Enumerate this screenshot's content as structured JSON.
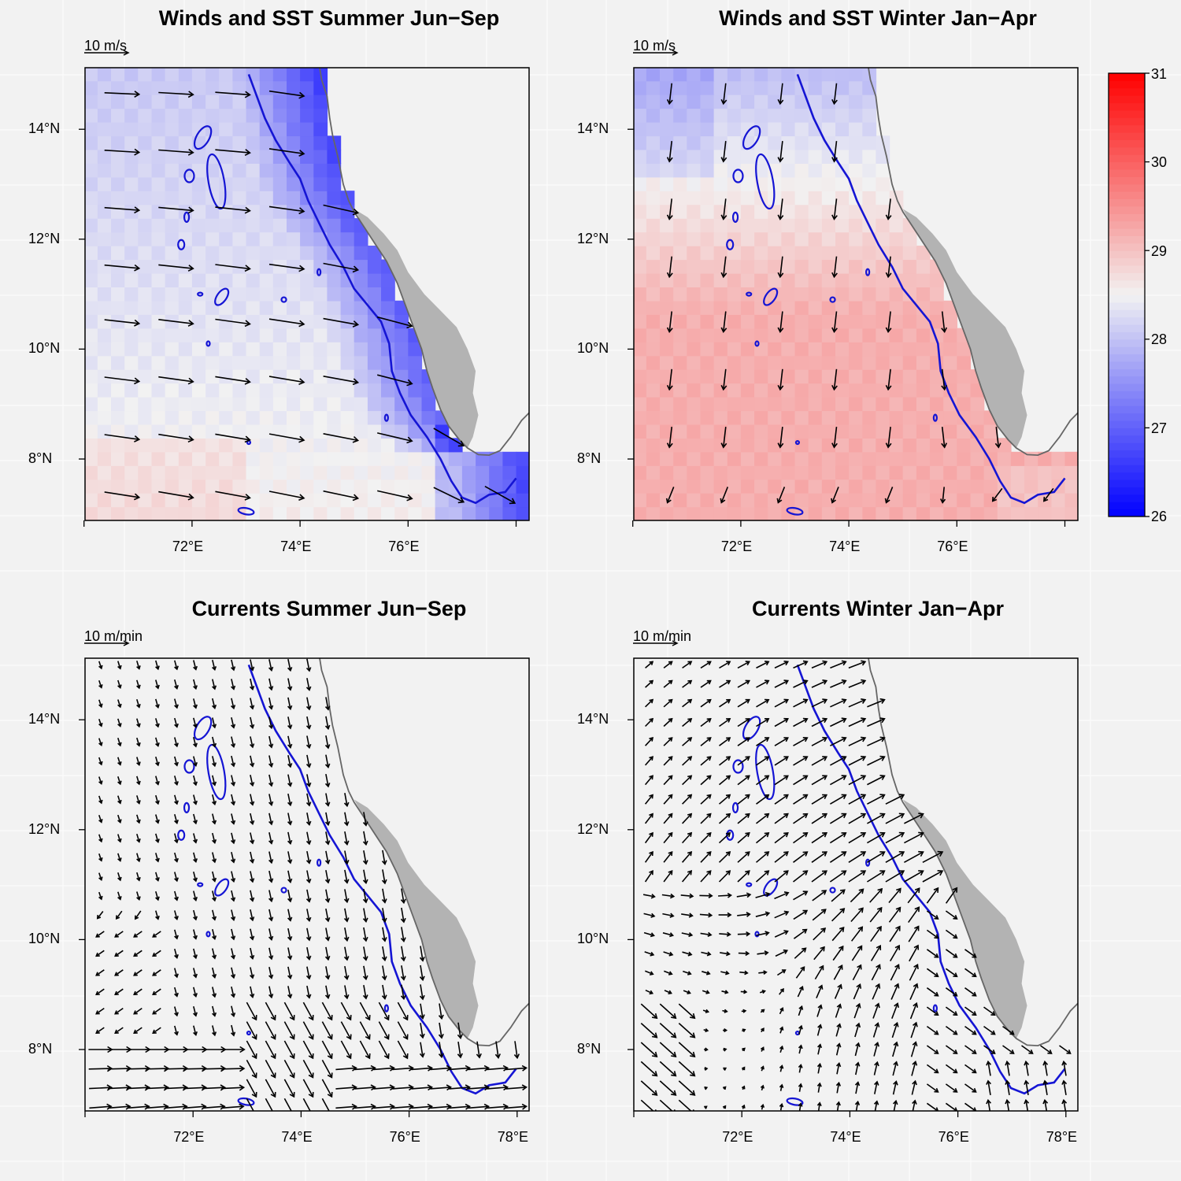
{
  "panels": [
    {
      "id": "p1",
      "title": "Winds and SST Summer Jun−Sep",
      "scale_label": "10 m/s",
      "kind": "wind",
      "season": "summer"
    },
    {
      "id": "p2",
      "title": "Winds and SST Winter Jan−Apr",
      "scale_label": "10 m/s",
      "kind": "wind",
      "season": "winter"
    },
    {
      "id": "p3",
      "title": "Currents Summer Jun−Sep",
      "scale_label": "10 m/min",
      "kind": "current",
      "season": "summer"
    },
    {
      "id": "p4",
      "title": "Currents Winter Jan−Apr",
      "scale_label": "10 m/min",
      "kind": "current",
      "season": "winter"
    }
  ],
  "axes": {
    "lat_ticks": [
      "8°N",
      "10°N",
      "12°N",
      "14°N"
    ],
    "lat_values": [
      8,
      10,
      12,
      14
    ],
    "lon_ticks_top": [
      "72°E",
      "74°E",
      "76°E"
    ],
    "lon_values_top": [
      72,
      74,
      76
    ],
    "lon_ticks_bottom": [
      "72°E",
      "74°E",
      "76°E",
      "78°E"
    ],
    "lon_values_bottom": [
      72,
      74,
      76,
      78
    ]
  },
  "colorbar": {
    "labels": [
      "26",
      "27",
      "28",
      "29",
      "30",
      "31"
    ],
    "min": 26,
    "max": 31,
    "colors": {
      "low": "#0000ff",
      "mid": "#f2f2f2",
      "high": "#ff0000"
    }
  },
  "colors": {
    "land": "#b3b3b3",
    "coast": "#666666",
    "contour": "#1515d4",
    "background": "#f2f2f2"
  },
  "chart_data": [
    {
      "type": "map",
      "title": "Winds and SST Summer Jun−Sep",
      "vector_units": "m/s",
      "sst_range": [
        26,
        31
      ],
      "description_vectors": "westerly to west-southwesterly winds, stronger near coast",
      "sst_gradient": "cooler (about 26.5°C) along southwest coast, ~28.5°C offshore"
    },
    {
      "type": "map",
      "title": "Winds and SST Winter Jan−Apr",
      "vector_units": "m/s",
      "sst_range": [
        26,
        31
      ],
      "description_vectors": "northerly winds",
      "sst_gradient": "~28°C in north, ~29.2°C in south"
    },
    {
      "type": "map",
      "title": "Currents Summer Jun−Sep",
      "vector_units": "m/min",
      "description_vectors": "southeastward flow, strong eastward in south"
    },
    {
      "type": "map",
      "title": "Currents Winter Jan−Apr",
      "vector_units": "m/min",
      "description_vectors": "northward/northeastward flow with anticyclonic pattern"
    }
  ]
}
